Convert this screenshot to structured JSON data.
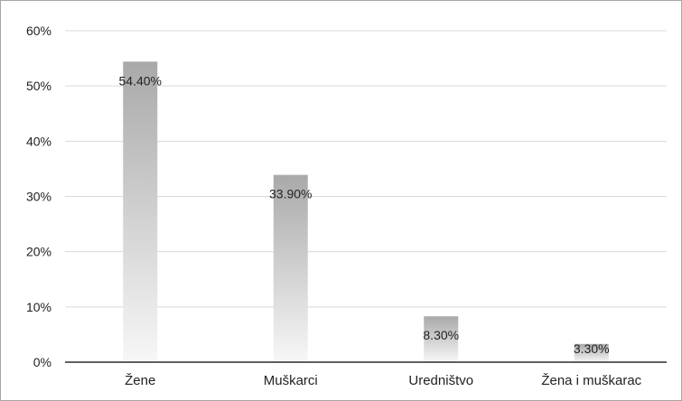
{
  "chart_data": {
    "type": "bar",
    "categories": [
      "Žene",
      "Muškarci",
      "Uredništvo",
      "Žena i muškarac"
    ],
    "values": [
      0.544,
      0.339,
      0.083,
      0.033
    ],
    "data_labels": [
      "54.40%",
      "33.90%",
      "8.30%",
      "3.30%"
    ],
    "y_ticks": [
      0,
      0.1,
      0.2,
      0.3,
      0.4,
      0.5,
      0.6
    ],
    "y_tick_labels": [
      "0%",
      "10%",
      "20%",
      "30%",
      "40%",
      "50%",
      "60%"
    ],
    "ylim": [
      0,
      0.6
    ],
    "grid": true,
    "legend": "none",
    "bar_fill": "gradient gray (darker at top, fading to white at base)",
    "colors": {
      "bar_top": "#a9a9a9",
      "bar_bottom": "#f7f7f7",
      "gridline": "#d9d9d9",
      "axis": "#000000",
      "frame": "#a6a6a6"
    }
  }
}
